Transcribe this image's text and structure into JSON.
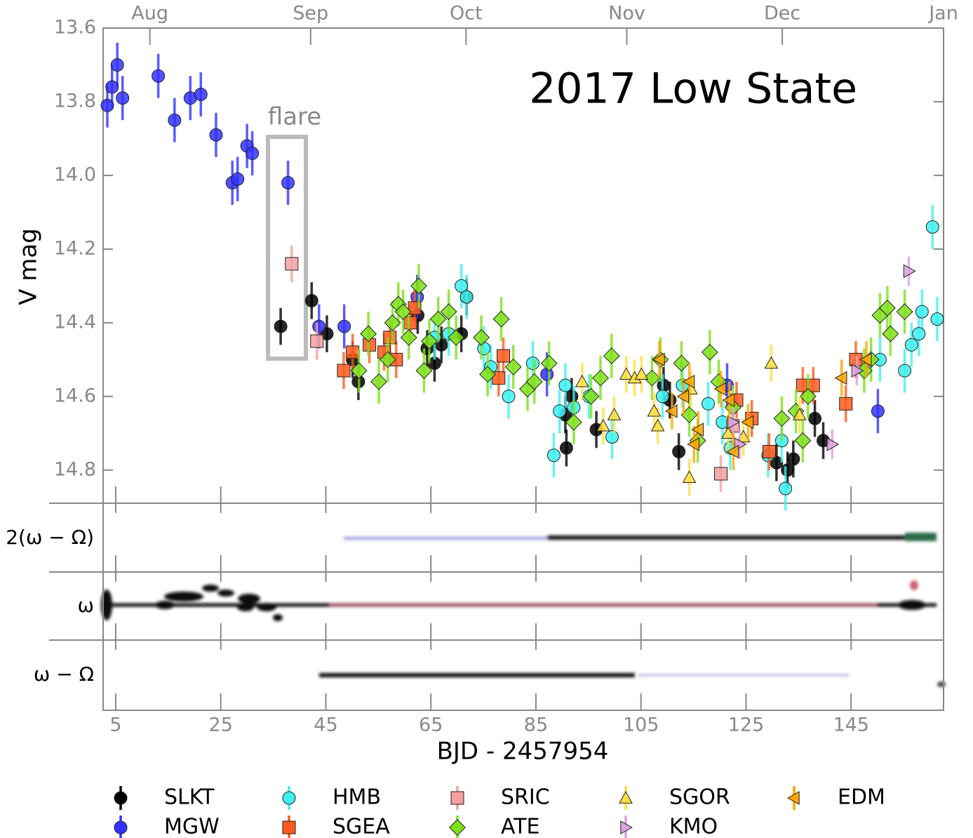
{
  "chart_data": {
    "type": "scatter",
    "title": "2017 Low State",
    "annotation": "flare",
    "x_label": "BJD - 2457954",
    "y_label": "V mag",
    "xlim": [
      2.6,
      162.6
    ],
    "ylim": [
      13.6,
      14.89
    ],
    "y_inverted": true,
    "xticks": [
      5,
      25,
      45,
      65,
      85,
      105,
      125,
      145
    ],
    "yticks": [
      13.6,
      13.8,
      {
        "value": 14.0,
        "label": "14.0"
      },
      14.2,
      14.4,
      14.6,
      14.8
    ],
    "top_xticks": [
      {
        "value": 11.5,
        "label": "Aug"
      },
      {
        "value": 42.1,
        "label": "Sep"
      },
      {
        "value": 71.7,
        "label": "Oct"
      },
      {
        "value": 102.3,
        "label": "Nov"
      },
      {
        "value": 131.9,
        "label": "Dec"
      },
      {
        "value": 162.6,
        "label": "Jan"
      }
    ],
    "legend": "bottom",
    "panels": [
      {
        "label": "2(ω − Ω)"
      },
      {
        "label": "ω"
      },
      {
        "label": "ω − Ω"
      }
    ],
    "series": [
      {
        "name": "SLKT",
        "color": "#000000",
        "marker": "circle",
        "error": 0.05,
        "x": [
          36.4,
          42.3,
          45.2,
          50.1,
          51.2,
          62.5,
          64.3,
          65.7,
          67.0,
          70.8,
          71.8,
          90.6,
          90.8,
          91.8,
          96.5,
          109.3,
          110.5,
          112.2,
          130.8,
          132.9,
          134.0,
          138.1,
          139.7
        ],
        "values": [
          14.41,
          14.34,
          14.43,
          14.5,
          14.56,
          14.38,
          14.47,
          14.51,
          14.46,
          14.43,
          14.33,
          14.65,
          14.74,
          14.6,
          14.69,
          14.57,
          14.61,
          14.75,
          14.78,
          14.8,
          14.77,
          14.66,
          14.72
        ]
      },
      {
        "name": "MGW",
        "color": "#3333ff",
        "marker": "circle",
        "error": 0.06,
        "x": [
          3.4,
          4.3,
          5.3,
          6.3,
          13.1,
          16.2,
          19.2,
          21.2,
          24.1,
          27.2,
          28.2,
          30.0,
          31.0,
          37.8,
          43.7,
          48.5,
          62.4,
          87.1,
          121.4,
          150.1
        ],
        "values": [
          13.81,
          13.76,
          13.7,
          13.79,
          13.73,
          13.85,
          13.79,
          13.78,
          13.89,
          14.02,
          14.01,
          13.92,
          13.94,
          14.02,
          14.41,
          14.41,
          14.33,
          14.54,
          14.57,
          14.64
        ]
      },
      {
        "name": "HMB",
        "color": "#40f0f0",
        "marker": "circle",
        "error": 0.06,
        "x": [
          65.7,
          68.4,
          70.8,
          71.8,
          75.1,
          76.4,
          79.8,
          84.4,
          88.4,
          89.5,
          90.6,
          92.2,
          95.1,
          99.5,
          109.1,
          112.9,
          117.8,
          120.5,
          122.0,
          129.2,
          131.8,
          132.5,
          150.5,
          155.2,
          156.5,
          157.9,
          158.5,
          160.5,
          161.4
        ],
        "values": [
          14.44,
          14.43,
          14.3,
          14.33,
          14.47,
          14.52,
          14.6,
          14.51,
          14.76,
          14.64,
          14.57,
          14.63,
          14.6,
          14.71,
          14.6,
          14.57,
          14.62,
          14.67,
          14.74,
          14.76,
          14.72,
          14.85,
          14.5,
          14.53,
          14.46,
          14.43,
          14.37,
          14.14,
          14.39
        ]
      },
      {
        "name": "SGEA",
        "color": "#ff5a1e",
        "marker": "square",
        "error": 0.05,
        "x": [
          48.4,
          50.1,
          53.3,
          56.1,
          57.2,
          58.4,
          61.1,
          61.9,
          77.9,
          78.8,
          123.2,
          126.1,
          129.4,
          135.8,
          137.8,
          144.0,
          145.9
        ],
        "values": [
          14.53,
          14.48,
          14.46,
          14.48,
          14.44,
          14.5,
          14.4,
          14.36,
          14.55,
          14.49,
          14.61,
          14.66,
          14.75,
          14.57,
          14.57,
          14.62,
          14.5
        ]
      },
      {
        "name": "SRIC",
        "color": "#f4a0a0",
        "marker": "square",
        "error": 0.05,
        "x": [
          38.5,
          43.3,
          120.2,
          122.5
        ],
        "values": [
          14.24,
          14.45,
          14.81,
          14.68
        ]
      },
      {
        "name": "ATE",
        "color": "#7ee01a",
        "marker": "diamond",
        "error": 0.06,
        "x": [
          51.3,
          53.1,
          55.1,
          56.8,
          57.7,
          58.8,
          59.7,
          60.8,
          62.7,
          63.7,
          64.7,
          66.4,
          68.4,
          69.8,
          74.6,
          75.8,
          78.4,
          80.7,
          83.4,
          84.7,
          87.5,
          92.2,
          95.5,
          97.3,
          99.4,
          107.1,
          108.7,
          112.7,
          114.2,
          115.8,
          118.1,
          119.8,
          122.5,
          131.8,
          134.5,
          135.8,
          136.8,
          147.5,
          148.8,
          150.5,
          151.9,
          152.5,
          155.2
        ],
        "values": [
          14.53,
          14.43,
          14.56,
          14.5,
          14.4,
          14.35,
          14.37,
          14.44,
          14.3,
          14.53,
          14.45,
          14.39,
          14.37,
          14.44,
          14.44,
          14.54,
          14.39,
          14.52,
          14.58,
          14.56,
          14.51,
          14.67,
          14.6,
          14.55,
          14.49,
          14.55,
          14.5,
          14.51,
          14.65,
          14.72,
          14.48,
          14.56,
          14.63,
          14.66,
          14.64,
          14.72,
          14.6,
          14.53,
          14.5,
          14.38,
          14.36,
          14.43,
          14.37
        ]
      },
      {
        "name": "SGOR",
        "color": "#ffdf40",
        "marker": "triangle-up",
        "error": 0.05,
        "x": [
          93.8,
          97.8,
          99.9,
          102.2,
          103.8,
          105.1,
          107.5,
          108.2,
          114.2,
          114.5,
          121.6,
          124.5,
          129.8,
          135.2
        ],
        "values": [
          14.56,
          14.68,
          14.65,
          14.54,
          14.55,
          14.54,
          14.64,
          14.68,
          14.82,
          14.58,
          14.7,
          14.71,
          14.51,
          14.65
        ]
      },
      {
        "name": "KMO",
        "color": "#dda0dd",
        "marker": "triangle-right",
        "error": 0.04,
        "x": [
          122.5,
          123.8,
          141.4,
          146.1,
          156.0
        ],
        "values": [
          14.67,
          14.73,
          14.73,
          14.53,
          14.26
        ]
      },
      {
        "name": "EDM",
        "color": "#ffa500",
        "marker": "triangle-left",
        "error": 0.05,
        "x": [
          108.5,
          110.9,
          113.1,
          114.2,
          115.1,
          115.9,
          120.2,
          121.8,
          122.6,
          125.4,
          143.2,
          147.9
        ],
        "values": [
          14.5,
          14.64,
          14.6,
          14.56,
          14.73,
          14.69,
          14.58,
          14.61,
          14.75,
          14.67,
          14.55,
          14.5
        ]
      }
    ]
  }
}
